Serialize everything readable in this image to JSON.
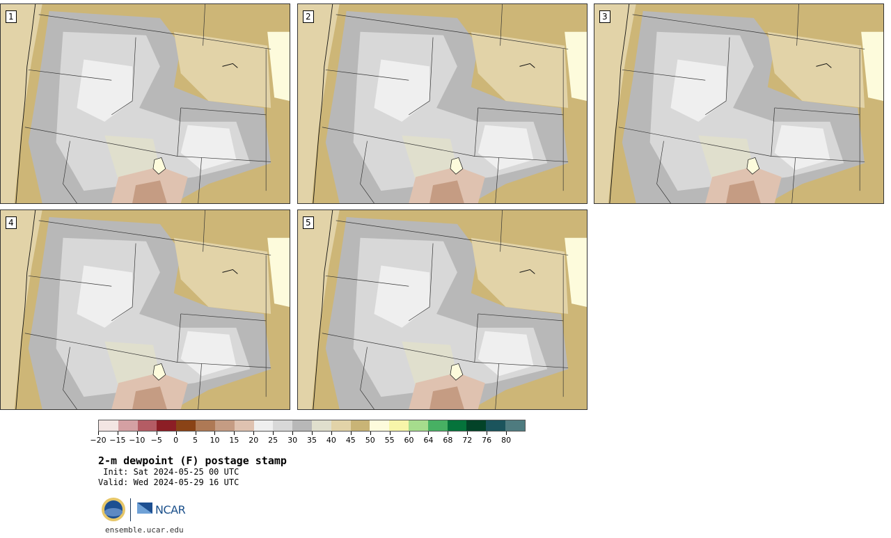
{
  "panels": [
    {
      "label": "1"
    },
    {
      "label": "2"
    },
    {
      "label": "3"
    },
    {
      "label": "4"
    },
    {
      "label": "5"
    }
  ],
  "colorbar": {
    "colors": [
      "#f3e5e3",
      "#d4a0a3",
      "#b45c64",
      "#8c1e25",
      "#8a4316",
      "#ae7955",
      "#c59c83",
      "#dfc2b0",
      "#efefef",
      "#d8d8d8",
      "#b8b8b8",
      "#e0dfcd",
      "#e2d3a8",
      "#c9b476",
      "#fdfbdc",
      "#f7f5a9",
      "#a6dc8d",
      "#47b063",
      "#05733b",
      "#034328",
      "#1b545c",
      "#4e7b7f"
    ],
    "tick_labels": [
      "−20",
      "−15",
      "−10",
      "−5",
      "0",
      "5",
      "10",
      "15",
      "20",
      "25",
      "30",
      "35",
      "40",
      "45",
      "50",
      "55",
      "60",
      "64",
      "68",
      "72",
      "76",
      "80"
    ]
  },
  "title": "2-m dewpoint (F) postage stamp",
  "init": " Init: Sat 2024-05-25 00 UTC",
  "valid": "Valid: Wed 2024-05-29 16 UTC",
  "logos": {
    "nsf": "NSF",
    "ncar": "NCAR"
  },
  "url": "ensemble.ucar.edu"
}
